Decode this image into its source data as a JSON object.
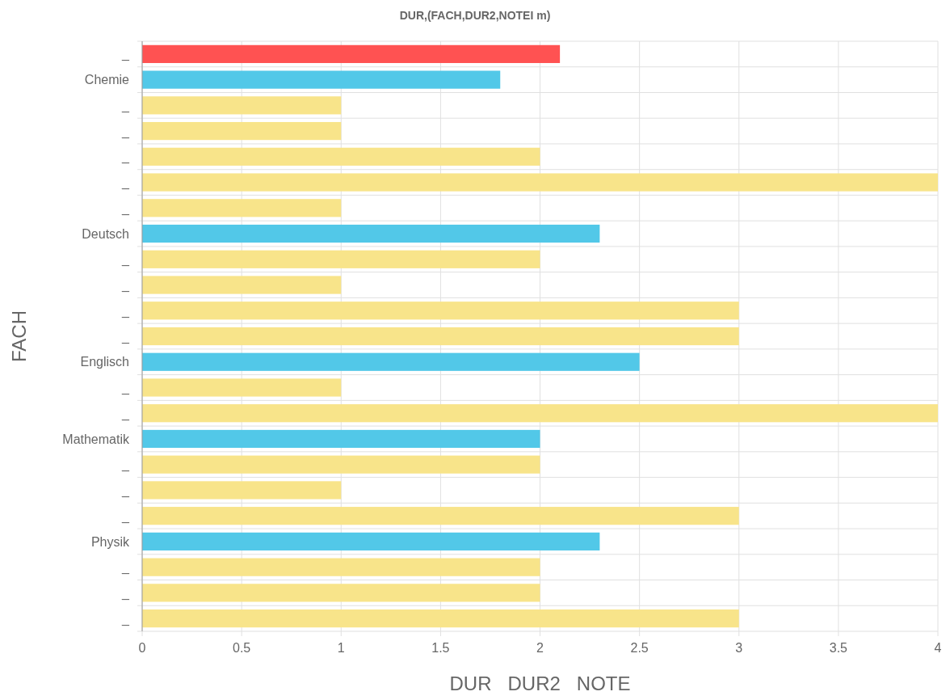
{
  "chart_data": {
    "type": "bar",
    "orientation": "horizontal",
    "title": "DUR,(FACH,DUR2,NOTEI m)",
    "xlabel": "DUR   DUR2   NOTE",
    "ylabel": "FACH",
    "categories": [
      "_",
      "Chemie",
      "_",
      "_",
      "_",
      "_",
      "_",
      "Deutsch",
      "_",
      "_",
      "_",
      "_",
      "Englisch",
      "_",
      "_",
      "Mathematik",
      "_",
      "_",
      "_",
      "Physik",
      "_",
      "_",
      "_"
    ],
    "values": [
      2.1,
      1.8,
      1,
      1,
      2,
      4,
      1,
      2.3,
      2,
      1,
      3,
      3,
      2.5,
      1,
      4,
      2,
      2,
      1,
      3,
      2.3,
      2,
      2,
      3
    ],
    "colors": [
      "#ff5252",
      "#52c8e8",
      "#f8e48a",
      "#f8e48a",
      "#f8e48a",
      "#f8e48a",
      "#f8e48a",
      "#52c8e8",
      "#f8e48a",
      "#f8e48a",
      "#f8e48a",
      "#f8e48a",
      "#52c8e8",
      "#f8e48a",
      "#f8e48a",
      "#52c8e8",
      "#f8e48a",
      "#f8e48a",
      "#f8e48a",
      "#52c8e8",
      "#f8e48a",
      "#f8e48a",
      "#f8e48a"
    ],
    "xlim": [
      0,
      4
    ],
    "xticks": [
      0,
      0.5,
      1,
      1.5,
      2,
      2.5,
      3,
      3.5,
      4
    ],
    "grid": true
  }
}
